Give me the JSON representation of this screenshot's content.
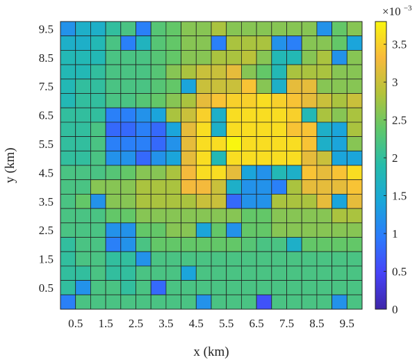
{
  "chart_data": {
    "type": "heatmap",
    "xlabel": "x (km)",
    "ylabel": "y (km)",
    "x_tick_labels": [
      "0.5",
      "1.5",
      "2.5",
      "3.5",
      "4.5",
      "5.5",
      "6.5",
      "7.5",
      "8.5",
      "9.5"
    ],
    "y_tick_labels": [
      "9.5",
      "8.5",
      "7.5",
      "6.5",
      "5.5",
      "4.5",
      "3.5",
      "2.5",
      "1.5",
      "0.5"
    ],
    "xlim": [
      0,
      10
    ],
    "ylim": [
      0,
      10
    ],
    "grid_size": [
      20,
      20
    ],
    "colorbar": {
      "tick_labels": [
        "3.5",
        "3",
        "2.5",
        "2",
        "1.5",
        "1",
        "0.5",
        "0"
      ],
      "tick_values": [
        3.5,
        3,
        2.5,
        2,
        1.5,
        1,
        0.5,
        0
      ],
      "range": [
        0,
        3.8
      ],
      "exponent_label": "×10",
      "exponent_sup": "−3"
    },
    "colormap": "parula",
    "values_rows_top_to_bottom": [
      [
        1.2,
        1.6,
        1.6,
        2.0,
        2.2,
        1.0,
        2.3,
        2.4,
        2.6,
        2.6,
        2.8,
        2.6,
        2.6,
        2.6,
        2.6,
        2.6,
        2.6,
        1.2,
        2.4,
        2.6
      ],
      [
        1.6,
        1.6,
        1.8,
        2.2,
        1.0,
        1.7,
        2.3,
        2.4,
        2.6,
        2.6,
        1.0,
        2.8,
        2.8,
        2.8,
        1.2,
        1.0,
        2.6,
        2.6,
        2.4,
        1.4
      ],
      [
        1.8,
        1.8,
        1.8,
        2.2,
        2.2,
        2.2,
        2.3,
        2.4,
        2.6,
        2.6,
        2.8,
        2.8,
        2.9,
        2.6,
        1.8,
        1.8,
        2.6,
        2.8,
        1.2,
        2.6
      ],
      [
        1.8,
        1.8,
        2.0,
        2.2,
        2.2,
        2.2,
        2.3,
        2.6,
        2.8,
        3.0,
        3.0,
        3.2,
        2.6,
        2.4,
        1.8,
        2.8,
        2.8,
        2.8,
        2.6,
        2.6
      ],
      [
        1.8,
        2.0,
        2.0,
        2.2,
        2.2,
        2.2,
        2.3,
        2.4,
        1.4,
        3.0,
        3.0,
        3.0,
        3.4,
        2.6,
        1.6,
        3.2,
        3.2,
        2.6,
        2.6,
        2.6
      ],
      [
        1.8,
        2.0,
        2.0,
        2.2,
        2.2,
        2.3,
        2.4,
        2.6,
        2.8,
        3.2,
        3.4,
        3.5,
        3.5,
        3.6,
        3.5,
        3.4,
        3.2,
        3.0,
        2.8,
        3.0
      ],
      [
        2.0,
        2.0,
        2.0,
        1.0,
        1.0,
        1.2,
        1.4,
        2.8,
        3.0,
        3.5,
        1.6,
        3.6,
        3.6,
        3.6,
        3.6,
        3.5,
        1.8,
        2.8,
        2.6,
        2.8
      ],
      [
        2.0,
        2.0,
        2.2,
        0.8,
        0.8,
        1.0,
        0.8,
        1.4,
        3.2,
        3.6,
        1.6,
        3.6,
        3.6,
        3.6,
        3.6,
        3.4,
        3.4,
        1.6,
        1.4,
        2.8
      ],
      [
        2.0,
        2.0,
        2.2,
        1.0,
        1.0,
        1.0,
        0.8,
        1.2,
        3.2,
        3.6,
        3.6,
        3.8,
        3.6,
        3.6,
        3.6,
        3.6,
        3.4,
        1.6,
        1.4,
        2.6
      ],
      [
        2.0,
        2.0,
        2.2,
        1.2,
        1.2,
        0.8,
        1.2,
        1.4,
        3.2,
        3.6,
        1.8,
        3.6,
        3.6,
        3.6,
        3.6,
        3.6,
        3.2,
        3.0,
        1.4,
        1.4
      ],
      [
        2.2,
        2.2,
        2.2,
        2.3,
        2.4,
        2.6,
        2.6,
        2.8,
        3.3,
        3.6,
        3.6,
        3.2,
        1.4,
        1.2,
        1.8,
        1.6,
        3.4,
        3.2,
        3.4,
        3.6
      ],
      [
        2.2,
        2.2,
        2.6,
        2.6,
        2.6,
        2.8,
        2.8,
        2.8,
        3.3,
        3.3,
        3.0,
        1.6,
        1.2,
        1.2,
        1.0,
        2.8,
        3.2,
        3.2,
        3.2,
        3.4
      ],
      [
        2.2,
        2.4,
        1.2,
        2.6,
        2.6,
        2.8,
        2.8,
        2.8,
        2.8,
        3.0,
        3.0,
        0.8,
        1.2,
        1.2,
        2.8,
        2.8,
        2.8,
        3.2,
        1.4,
        3.2
      ],
      [
        2.2,
        2.2,
        2.2,
        2.4,
        2.4,
        2.6,
        2.6,
        2.6,
        2.6,
        2.6,
        2.6,
        2.6,
        2.4,
        2.4,
        2.6,
        2.6,
        2.6,
        2.6,
        2.8,
        2.8
      ],
      [
        2.2,
        2.2,
        2.2,
        1.2,
        1.2,
        2.4,
        2.4,
        2.6,
        2.6,
        1.4,
        2.4,
        1.2,
        2.4,
        2.4,
        2.6,
        2.6,
        2.6,
        2.6,
        2.6,
        2.6
      ],
      [
        2.0,
        2.2,
        2.2,
        1.0,
        1.2,
        2.2,
        2.4,
        2.4,
        2.4,
        2.4,
        2.4,
        2.4,
        2.3,
        2.2,
        2.2,
        1.6,
        2.4,
        2.4,
        2.4,
        2.4
      ],
      [
        2.0,
        2.2,
        2.2,
        2.0,
        2.0,
        1.2,
        2.2,
        2.2,
        2.2,
        2.2,
        2.2,
        2.2,
        2.2,
        2.2,
        2.2,
        2.2,
        2.2,
        2.2,
        2.2,
        2.2
      ],
      [
        2.0,
        2.0,
        2.2,
        2.0,
        2.0,
        2.2,
        2.2,
        2.2,
        1.4,
        2.2,
        2.2,
        2.2,
        2.2,
        2.2,
        2.2,
        2.2,
        2.2,
        2.2,
        2.2,
        2.2
      ],
      [
        2.0,
        1.2,
        2.2,
        2.2,
        2.0,
        2.2,
        0.8,
        2.2,
        2.2,
        2.2,
        2.2,
        2.2,
        2.2,
        2.2,
        2.2,
        2.2,
        2.2,
        2.2,
        2.2,
        2.2
      ],
      [
        1.0,
        2.2,
        2.2,
        2.2,
        2.2,
        2.2,
        2.2,
        2.2,
        2.2,
        1.2,
        2.2,
        2.2,
        2.2,
        0.6,
        2.2,
        2.2,
        2.2,
        2.2,
        1.2,
        2.2
      ]
    ]
  }
}
